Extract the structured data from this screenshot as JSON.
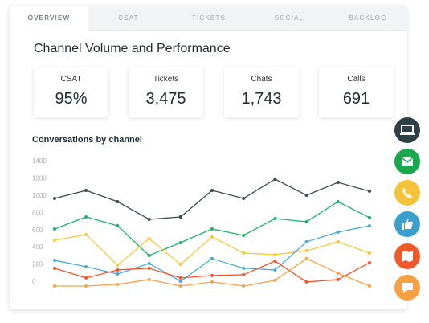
{
  "tabs": [
    "OVERVIEW",
    "CSAT",
    "TICKETS",
    "SOCIAL",
    "BACKLOG"
  ],
  "title": "Channel Volume and Performance",
  "stats": [
    {
      "label": "CSAT",
      "value": "95%"
    },
    {
      "label": "Tickets",
      "value": "3,475"
    },
    {
      "label": "Chats",
      "value": "1,743"
    },
    {
      "label": "Calls",
      "value": "691"
    }
  ],
  "chart_data": {
    "type": "line",
    "title": "Conversations by channel",
    "categories": [
      null,
      null,
      null,
      null,
      null,
      null,
      null,
      null,
      null,
      null,
      null
    ],
    "series": [
      {
        "color": "#3b4a4f",
        "values": [
          971,
          1064,
          933,
          728,
          756,
          1064,
          971,
          1195,
          1008,
          1157,
          1055
        ]
      },
      {
        "color": "#1fb36a",
        "values": [
          616,
          756,
          653,
          308,
          457,
          616,
          541,
          737,
          700,
          933,
          747
        ]
      },
      {
        "color": "#f5c842",
        "values": [
          485,
          551,
          196,
          504,
          205,
          523,
          336,
          317,
          364,
          467,
          336
        ]
      },
      {
        "color": "#4ba9d0",
        "values": [
          252,
          177,
          93,
          215,
          9,
          271,
          159,
          140,
          467,
          579,
          653
        ]
      },
      {
        "color": "#f0562a",
        "values": [
          159,
          47,
          140,
          159,
          47,
          75,
          84,
          243,
          0,
          28,
          224
        ]
      },
      {
        "color": "#f7a04d",
        "values": [
          -47,
          -47,
          -28,
          28,
          -47,
          0,
          -47,
          19,
          271,
          103,
          -47
        ]
      }
    ],
    "ylim": [
      -150,
      1400
    ],
    "yticks": [
      0,
      200,
      400,
      600,
      800,
      1000,
      1200,
      1400
    ],
    "grid": false
  }
}
